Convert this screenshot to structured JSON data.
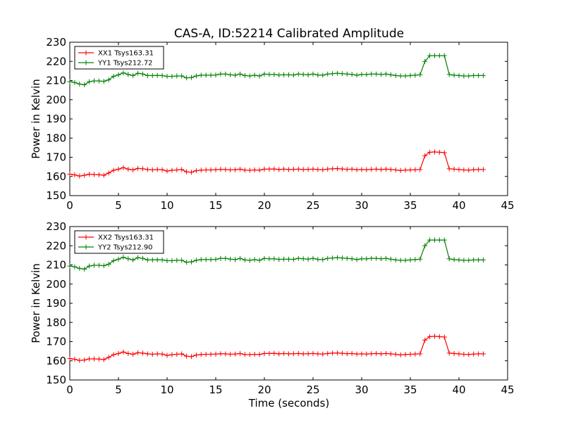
{
  "title": "CAS-A, ID:52214 Calibrated Amplitude",
  "xlabel": "Time (seconds)",
  "chart_data": [
    {
      "type": "line",
      "xlim": [
        0,
        45
      ],
      "ylim": [
        150,
        230
      ],
      "xticks": [
        0,
        5,
        10,
        15,
        20,
        25,
        30,
        35,
        40,
        45
      ],
      "yticks": [
        150,
        160,
        170,
        180,
        190,
        200,
        210,
        220,
        230
      ],
      "ylabel": "Power in Kelvin",
      "xlabel": "",
      "grid": false,
      "legend_position": "top-left",
      "series": [
        {
          "name": "XX1 Tsys163.31",
          "color": "#ff0000",
          "x": [
            0.0,
            0.5,
            1.0,
            1.5,
            2.0,
            2.5,
            3.0,
            3.5,
            4.0,
            4.5,
            5.0,
            5.5,
            6.0,
            6.5,
            7.0,
            7.5,
            8.0,
            8.5,
            9.0,
            9.5,
            10.0,
            10.5,
            11.0,
            11.5,
            12.0,
            12.5,
            13.0,
            13.5,
            14.0,
            14.5,
            15.0,
            15.5,
            16.0,
            16.5,
            17.0,
            17.5,
            18.0,
            18.5,
            19.0,
            19.5,
            20.0,
            20.5,
            21.0,
            21.5,
            22.0,
            22.5,
            23.0,
            23.5,
            24.0,
            24.5,
            25.0,
            25.5,
            26.0,
            26.5,
            27.0,
            27.5,
            28.0,
            28.5,
            29.0,
            29.5,
            30.0,
            30.5,
            31.0,
            31.5,
            32.0,
            32.5,
            33.0,
            33.5,
            34.0,
            34.5,
            35.0,
            35.5,
            36.0,
            36.5,
            37.0,
            37.5,
            38.0,
            38.5,
            39.0,
            39.5,
            40.0,
            40.5,
            41.0,
            41.5,
            42.0,
            42.5
          ],
          "y": [
            161.2,
            160.8,
            160.2,
            160.6,
            161.2,
            161.0,
            160.9,
            160.6,
            161.8,
            163.2,
            163.8,
            164.6,
            163.8,
            163.4,
            164.2,
            164.0,
            163.6,
            163.4,
            163.6,
            163.5,
            162.8,
            163.2,
            163.4,
            163.6,
            162.4,
            162.2,
            163.0,
            163.3,
            163.4,
            163.4,
            163.5,
            163.7,
            163.6,
            163.4,
            163.5,
            163.8,
            163.3,
            163.2,
            163.4,
            163.3,
            163.8,
            163.8,
            163.9,
            163.6,
            163.8,
            163.6,
            163.7,
            163.8,
            163.6,
            163.7,
            163.8,
            163.6,
            163.5,
            163.8,
            164.0,
            164.1,
            163.9,
            163.7,
            163.8,
            163.5,
            163.6,
            163.5,
            163.7,
            163.8,
            163.6,
            163.8,
            163.6,
            163.4,
            163.1,
            163.3,
            163.4,
            163.5,
            163.6,
            170.8,
            172.6,
            172.8,
            172.6,
            172.4,
            164.0,
            163.8,
            163.6,
            163.4,
            163.3,
            163.5,
            163.6,
            163.6
          ]
        },
        {
          "name": "YY1 Tsys212.72",
          "color": "#008000",
          "x": [
            0.0,
            0.5,
            1.0,
            1.5,
            2.0,
            2.5,
            3.0,
            3.5,
            4.0,
            4.5,
            5.0,
            5.5,
            6.0,
            6.5,
            7.0,
            7.5,
            8.0,
            8.5,
            9.0,
            9.5,
            10.0,
            10.5,
            11.0,
            11.5,
            12.0,
            12.5,
            13.0,
            13.5,
            14.0,
            14.5,
            15.0,
            15.5,
            16.0,
            16.5,
            17.0,
            17.5,
            18.0,
            18.5,
            19.0,
            19.5,
            20.0,
            20.5,
            21.0,
            21.5,
            22.0,
            22.5,
            23.0,
            23.5,
            24.0,
            24.5,
            25.0,
            25.5,
            26.0,
            26.5,
            27.0,
            27.5,
            28.0,
            28.5,
            29.0,
            29.5,
            30.0,
            30.5,
            31.0,
            31.5,
            32.0,
            32.5,
            33.0,
            33.5,
            34.0,
            34.5,
            35.0,
            35.5,
            36.0,
            36.5,
            37.0,
            37.5,
            38.0,
            38.5,
            39.0,
            39.5,
            40.0,
            40.5,
            41.0,
            41.5,
            42.0,
            42.5
          ],
          "y": [
            209.4,
            209.0,
            208.2,
            207.8,
            209.4,
            209.8,
            209.8,
            209.6,
            210.4,
            212.2,
            213.0,
            214.0,
            213.2,
            212.6,
            213.8,
            213.4,
            212.6,
            212.6,
            212.7,
            212.6,
            212.2,
            212.2,
            212.4,
            212.4,
            211.4,
            211.6,
            212.4,
            212.8,
            212.8,
            212.8,
            212.9,
            213.4,
            213.4,
            213.0,
            212.8,
            213.4,
            212.6,
            212.4,
            212.8,
            212.4,
            213.4,
            213.2,
            213.2,
            212.9,
            213.0,
            213.0,
            212.9,
            213.4,
            213.2,
            213.0,
            213.4,
            212.9,
            212.8,
            213.4,
            213.6,
            213.8,
            213.6,
            213.4,
            213.2,
            212.8,
            213.2,
            213.2,
            213.4,
            213.4,
            213.2,
            213.4,
            213.0,
            212.6,
            212.4,
            212.4,
            212.6,
            212.8,
            213.0,
            220.0,
            223.0,
            223.0,
            223.0,
            223.0,
            213.2,
            212.8,
            212.6,
            212.4,
            212.4,
            212.6,
            212.6,
            212.6
          ]
        }
      ]
    },
    {
      "type": "line",
      "xlim": [
        0,
        45
      ],
      "ylim": [
        150,
        230
      ],
      "xticks": [
        0,
        5,
        10,
        15,
        20,
        25,
        30,
        35,
        40,
        45
      ],
      "yticks": [
        150,
        160,
        170,
        180,
        190,
        200,
        210,
        220,
        230
      ],
      "ylabel": "Power in Kelvin",
      "xlabel": "Time (seconds)",
      "grid": false,
      "legend_position": "top-left",
      "series": [
        {
          "name": "XX2 Tsys163.31",
          "color": "#ff0000",
          "x": [
            0.0,
            0.5,
            1.0,
            1.5,
            2.0,
            2.5,
            3.0,
            3.5,
            4.0,
            4.5,
            5.0,
            5.5,
            6.0,
            6.5,
            7.0,
            7.5,
            8.0,
            8.5,
            9.0,
            9.5,
            10.0,
            10.5,
            11.0,
            11.5,
            12.0,
            12.5,
            13.0,
            13.5,
            14.0,
            14.5,
            15.0,
            15.5,
            16.0,
            16.5,
            17.0,
            17.5,
            18.0,
            18.5,
            19.0,
            19.5,
            20.0,
            20.5,
            21.0,
            21.5,
            22.0,
            22.5,
            23.0,
            23.5,
            24.0,
            24.5,
            25.0,
            25.5,
            26.0,
            26.5,
            27.0,
            27.5,
            28.0,
            28.5,
            29.0,
            29.5,
            30.0,
            30.5,
            31.0,
            31.5,
            32.0,
            32.5,
            33.0,
            33.5,
            34.0,
            34.5,
            35.0,
            35.5,
            36.0,
            36.5,
            37.0,
            37.5,
            38.0,
            38.5,
            39.0,
            39.5,
            40.0,
            40.5,
            41.0,
            41.5,
            42.0,
            42.5
          ],
          "y": [
            161.2,
            160.8,
            160.2,
            160.4,
            161.0,
            161.0,
            160.9,
            160.6,
            161.8,
            163.2,
            163.8,
            164.6,
            163.8,
            163.4,
            164.2,
            164.0,
            163.6,
            163.4,
            163.6,
            163.5,
            162.8,
            163.2,
            163.4,
            163.6,
            162.4,
            162.2,
            163.0,
            163.3,
            163.4,
            163.4,
            163.5,
            163.7,
            163.6,
            163.4,
            163.5,
            163.8,
            163.3,
            163.2,
            163.4,
            163.3,
            163.8,
            163.8,
            163.9,
            163.6,
            163.8,
            163.6,
            163.7,
            163.8,
            163.6,
            163.7,
            163.8,
            163.6,
            163.5,
            163.8,
            164.0,
            164.1,
            163.9,
            163.7,
            163.8,
            163.5,
            163.6,
            163.5,
            163.7,
            163.8,
            163.6,
            163.8,
            163.6,
            163.4,
            163.1,
            163.3,
            163.4,
            163.5,
            163.6,
            170.8,
            172.6,
            172.8,
            172.6,
            172.4,
            164.0,
            163.8,
            163.6,
            163.4,
            163.3,
            163.5,
            163.6,
            163.6
          ]
        },
        {
          "name": "YY2 Tsys212.90",
          "color": "#008000",
          "x": [
            0.0,
            0.5,
            1.0,
            1.5,
            2.0,
            2.5,
            3.0,
            3.5,
            4.0,
            4.5,
            5.0,
            5.5,
            6.0,
            6.5,
            7.0,
            7.5,
            8.0,
            8.5,
            9.0,
            9.5,
            10.0,
            10.5,
            11.0,
            11.5,
            12.0,
            12.5,
            13.0,
            13.5,
            14.0,
            14.5,
            15.0,
            15.5,
            16.0,
            16.5,
            17.0,
            17.5,
            18.0,
            18.5,
            19.0,
            19.5,
            20.0,
            20.5,
            21.0,
            21.5,
            22.0,
            22.5,
            23.0,
            23.5,
            24.0,
            24.5,
            25.0,
            25.5,
            26.0,
            26.5,
            27.0,
            27.5,
            28.0,
            28.5,
            29.0,
            29.5,
            30.0,
            30.5,
            31.0,
            31.5,
            32.0,
            32.5,
            33.0,
            33.5,
            34.0,
            34.5,
            35.0,
            35.5,
            36.0,
            36.5,
            37.0,
            37.5,
            38.0,
            38.5,
            39.0,
            39.5,
            40.0,
            40.5,
            41.0,
            41.5,
            42.0,
            42.5
          ],
          "y": [
            209.4,
            209.0,
            208.2,
            207.8,
            209.4,
            209.8,
            209.8,
            209.6,
            210.4,
            212.2,
            213.0,
            214.0,
            213.2,
            212.6,
            213.8,
            213.4,
            212.6,
            212.6,
            212.7,
            212.6,
            212.2,
            212.2,
            212.4,
            212.4,
            211.4,
            211.6,
            212.4,
            212.8,
            212.8,
            212.8,
            212.9,
            213.4,
            213.4,
            213.0,
            212.8,
            213.4,
            212.6,
            212.4,
            212.8,
            212.4,
            213.4,
            213.2,
            213.2,
            212.9,
            213.0,
            213.0,
            212.9,
            213.4,
            213.2,
            213.0,
            213.4,
            212.9,
            212.8,
            213.4,
            213.6,
            213.8,
            213.6,
            213.4,
            213.2,
            212.8,
            213.2,
            213.2,
            213.4,
            213.4,
            213.2,
            213.4,
            213.0,
            212.6,
            212.4,
            212.4,
            212.6,
            212.8,
            213.0,
            220.0,
            223.0,
            223.0,
            223.0,
            223.0,
            213.2,
            212.8,
            212.6,
            212.4,
            212.4,
            212.6,
            212.6,
            212.6
          ]
        }
      ]
    }
  ]
}
